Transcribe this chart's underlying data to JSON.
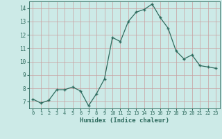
{
  "x": [
    0,
    1,
    2,
    3,
    4,
    5,
    6,
    7,
    8,
    9,
    10,
    11,
    12,
    13,
    14,
    15,
    16,
    17,
    18,
    19,
    20,
    21,
    22,
    23
  ],
  "y": [
    7.2,
    6.9,
    7.1,
    7.9,
    7.9,
    8.1,
    7.8,
    6.7,
    7.6,
    8.7,
    11.8,
    11.5,
    13.0,
    13.7,
    13.9,
    14.3,
    13.3,
    12.5,
    10.8,
    10.2,
    10.5,
    9.7,
    9.6,
    9.5
  ],
  "xlabel": "Humidex (Indice chaleur)",
  "xlim": [
    -0.5,
    23.5
  ],
  "ylim": [
    6.5,
    14.5
  ],
  "yticks": [
    7,
    8,
    9,
    10,
    11,
    12,
    13,
    14
  ],
  "xticks": [
    0,
    1,
    2,
    3,
    4,
    5,
    6,
    7,
    8,
    9,
    10,
    11,
    12,
    13,
    14,
    15,
    16,
    17,
    18,
    19,
    20,
    21,
    22,
    23
  ],
  "line_color": "#2e6b5e",
  "marker_color": "#2e6b5e",
  "bg_color": "#cceae7",
  "grid_color": "#c8a0a0",
  "label_color": "#2e6b5e",
  "tick_color": "#2e6b5e",
  "spine_color": "#2e6b5e"
}
